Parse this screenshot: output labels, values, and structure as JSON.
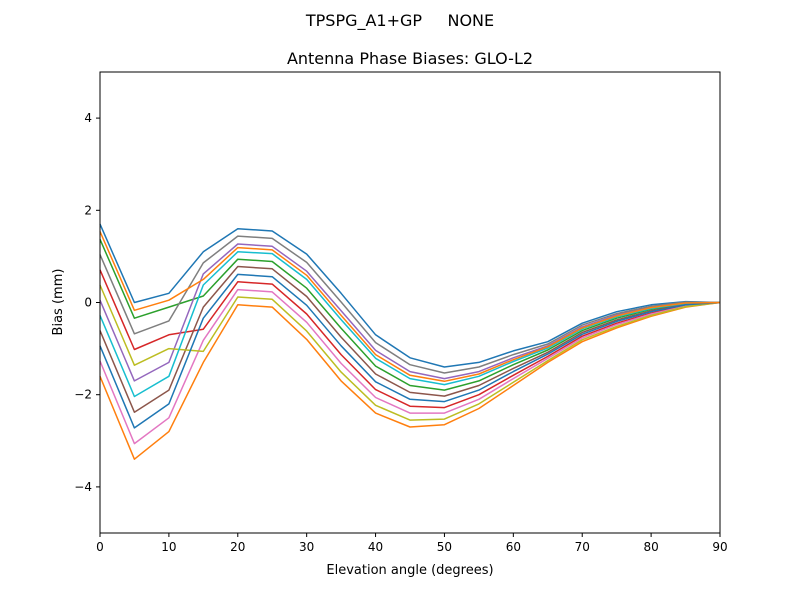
{
  "chart_data": {
    "type": "line",
    "suptitle": "TPSPG_A1+GP     NONE",
    "title": "Antenna Phase Biases: GLO-L2",
    "xlabel": "Elevation angle (degrees)",
    "ylabel": "Bias (mm)",
    "xlim": [
      0,
      90
    ],
    "ylim": [
      -5,
      5
    ],
    "xticks": [
      0,
      10,
      20,
      30,
      40,
      50,
      60,
      70,
      80,
      90
    ],
    "yticks": [
      -4,
      -2,
      0,
      2,
      4
    ],
    "ytick_labels": [
      "−4",
      "−2",
      "0",
      "2",
      "4"
    ],
    "grid": false,
    "legend": "none",
    "colors": [
      "#1f77b4",
      "#ff7f0e",
      "#2ca02c",
      "#d62728",
      "#9467bd",
      "#8c564b",
      "#e377c2",
      "#7f7f7f",
      "#bcbd22",
      "#17becf"
    ],
    "x": [
      0,
      5,
      10,
      15,
      20,
      25,
      30,
      35,
      40,
      45,
      50,
      55,
      60,
      65,
      70,
      75,
      80,
      85,
      90
    ],
    "series": [
      {
        "values": [
          1.7,
          0.0,
          0.2,
          1.1,
          1.6,
          1.55,
          1.05,
          0.2,
          -0.7,
          -1.2,
          -1.4,
          -1.3,
          -1.05,
          -0.85,
          -0.45,
          -0.2,
          -0.05,
          0.02,
          0
        ]
      },
      {
        "values": [
          -1.6,
          -3.4,
          -2.8,
          -1.3,
          -0.05,
          -0.1,
          -0.8,
          -1.7,
          -2.4,
          -2.7,
          -2.65,
          -2.3,
          -1.8,
          -1.3,
          -0.85,
          -0.55,
          -0.3,
          -0.1,
          0
        ]
      },
      {
        "values": [
          1.37,
          -0.34,
          -0.1,
          0.14,
          0.94,
          0.89,
          0.31,
          -0.56,
          -1.38,
          -1.8,
          -1.9,
          -1.7,
          -1.35,
          -1.03,
          -0.61,
          -0.34,
          -0.15,
          -0.03,
          0
        ]
      },
      {
        "values": [
          0.71,
          -1.02,
          -0.7,
          -0.58,
          0.45,
          0.4,
          -0.25,
          -1.13,
          -1.89,
          -2.25,
          -2.28,
          -2.0,
          -1.58,
          -1.17,
          -0.73,
          -0.45,
          -0.23,
          -0.06,
          0
        ]
      },
      {
        "values": [
          0.05,
          -1.7,
          -1.3,
          0.62,
          1.27,
          1.22,
          0.68,
          -0.18,
          -1.04,
          -1.5,
          -1.65,
          -1.5,
          -1.2,
          -0.94,
          -0.53,
          -0.27,
          -0.1,
          0.0,
          0
        ]
      },
      {
        "values": [
          -0.61,
          -2.38,
          -1.9,
          -0.1,
          0.78,
          0.73,
          0.13,
          -0.75,
          -1.55,
          -1.95,
          -2.03,
          -1.8,
          -1.43,
          -1.08,
          -0.65,
          -0.38,
          -0.18,
          -0.04,
          0
        ]
      },
      {
        "values": [
          -1.27,
          -3.06,
          -2.5,
          -0.82,
          0.28,
          0.23,
          -0.43,
          -1.32,
          -2.06,
          -2.4,
          -2.4,
          -2.1,
          -1.65,
          -1.21,
          -0.77,
          -0.48,
          -0.25,
          -0.08,
          0
        ]
      },
      {
        "values": [
          1.04,
          -0.68,
          -0.4,
          0.86,
          1.44,
          1.39,
          0.87,
          0.01,
          -0.87,
          -1.35,
          -1.53,
          -1.4,
          -1.13,
          -0.9,
          -0.49,
          -0.24,
          -0.08,
          0.01,
          0
        ]
      },
      {
        "values": [
          0.38,
          -1.36,
          -1.0,
          -1.06,
          0.12,
          0.07,
          -0.62,
          -1.51,
          -2.23,
          -2.55,
          -2.53,
          -2.2,
          -1.73,
          -1.26,
          -0.81,
          -0.52,
          -0.28,
          -0.09,
          0
        ]
      },
      {
        "values": [
          -0.28,
          -2.04,
          -1.6,
          0.38,
          1.1,
          1.06,
          0.5,
          -0.37,
          -1.21,
          -1.65,
          -1.78,
          -1.6,
          -1.28,
          -0.99,
          -0.57,
          -0.31,
          -0.13,
          -0.02,
          0
        ]
      },
      {
        "values": [
          -0.94,
          -2.72,
          -2.2,
          -0.34,
          0.61,
          0.56,
          -0.06,
          -0.94,
          -1.72,
          -2.1,
          -2.15,
          -1.9,
          -1.5,
          -1.12,
          -0.69,
          -0.41,
          -0.2,
          -0.05,
          0
        ]
      },
      {
        "values": [
          1.54,
          -0.17,
          0.05,
          0.5,
          1.19,
          1.14,
          0.59,
          -0.28,
          -1.13,
          -1.58,
          -1.71,
          -1.55,
          -1.24,
          -0.96,
          -0.55,
          -0.29,
          -0.11,
          -0.01,
          0
        ]
      }
    ]
  }
}
